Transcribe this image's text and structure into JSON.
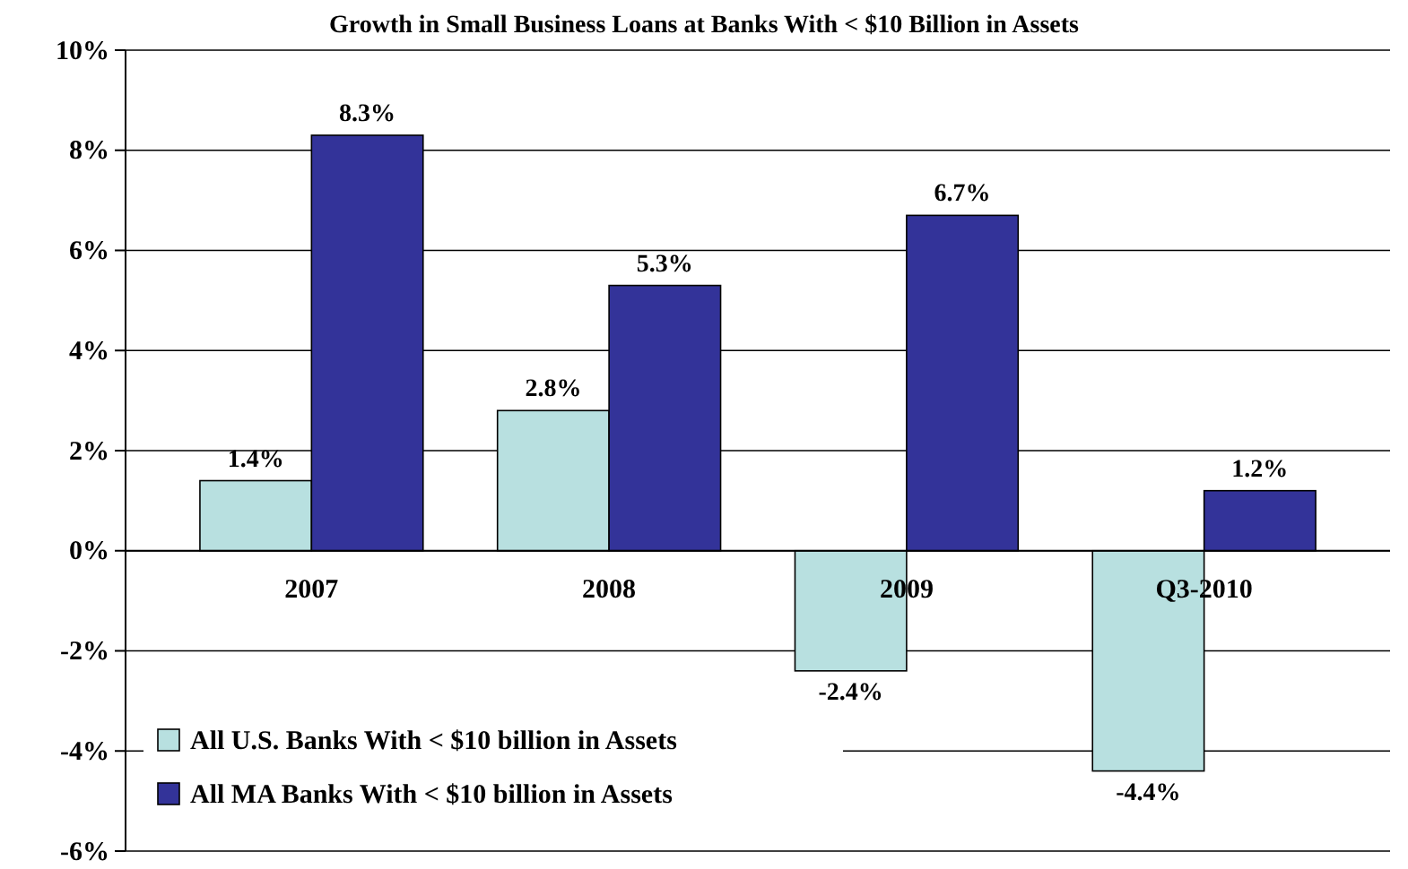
{
  "chart_data": {
    "type": "bar",
    "title": "Growth in Small Business Loans at Banks With < $10 Billion in Assets",
    "categories": [
      "2007",
      "2008",
      "2009",
      "Q3-2010"
    ],
    "series": [
      {
        "name": "All U.S. Banks With < $10 billion in Assets",
        "color": "#b8e0e0",
        "values": [
          1.4,
          2.8,
          -2.4,
          -4.4
        ],
        "value_labels": [
          "1.4%",
          "2.8%",
          "-2.4%",
          "-4.4%"
        ]
      },
      {
        "name": "All MA Banks With < $10 billion in Assets",
        "color": "#333399",
        "values": [
          8.3,
          5.3,
          6.7,
          1.2
        ],
        "value_labels": [
          "8.3%",
          "5.3%",
          "6.7%",
          "1.2%"
        ]
      }
    ],
    "ylim": [
      -6,
      10
    ],
    "yticks": [
      {
        "value": -6,
        "label": "-6%"
      },
      {
        "value": -4,
        "label": "-4%"
      },
      {
        "value": -2,
        "label": "-2%"
      },
      {
        "value": 0,
        "label": "0%"
      },
      {
        "value": 2,
        "label": "2%"
      },
      {
        "value": 4,
        "label": "4%"
      },
      {
        "value": 6,
        "label": "6%"
      },
      {
        "value": 8,
        "label": "8%"
      },
      {
        "value": 10,
        "label": "10%"
      }
    ],
    "grid": "y",
    "legend": "bottom left"
  }
}
